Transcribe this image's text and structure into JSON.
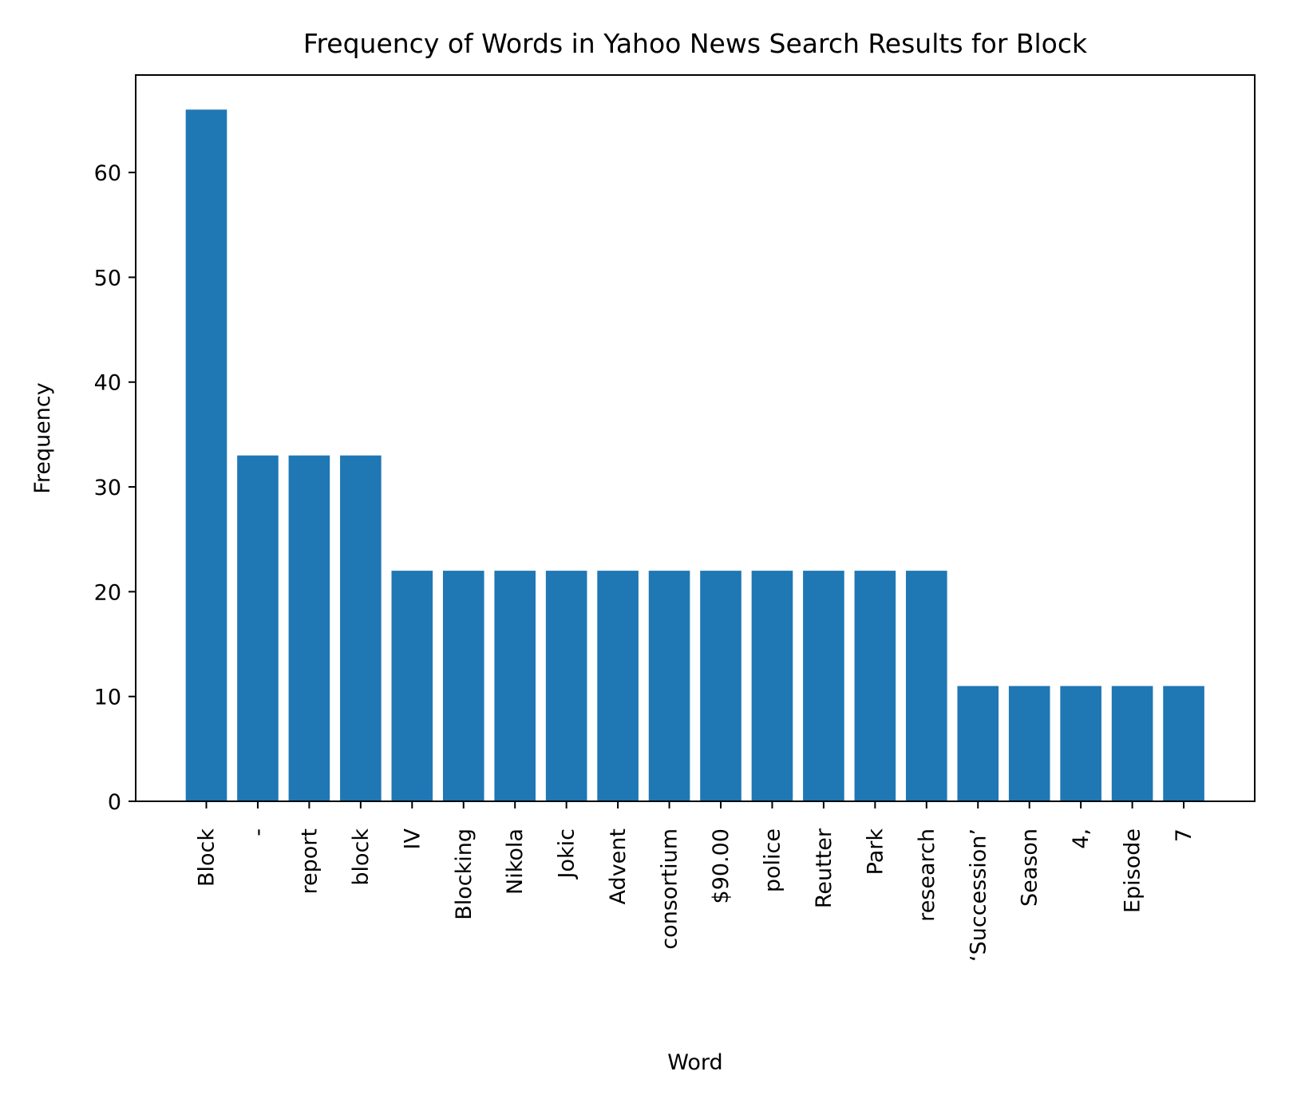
{
  "chart_data": {
    "type": "bar",
    "title": "Frequency of Words in Yahoo News Search Results for Block",
    "xlabel": "Word",
    "ylabel": "Frequency",
    "categories": [
      "Block",
      "-",
      "report",
      "block",
      "IV",
      "Blocking",
      "Nikola",
      "Jokic",
      "Advent",
      "consortium",
      "$90.00",
      "police",
      "Reutter",
      "Park",
      "research",
      "‘Succession’",
      "Season",
      "4,",
      "Episode",
      "7"
    ],
    "values": [
      66,
      33,
      33,
      33,
      22,
      22,
      22,
      22,
      22,
      22,
      22,
      22,
      22,
      22,
      22,
      11,
      11,
      11,
      11,
      11
    ],
    "ylim": [
      0,
      69.3
    ],
    "yticks": [
      0,
      10,
      20,
      30,
      40,
      50,
      60
    ],
    "grid": false,
    "colors": {
      "bar": "#1f77b4",
      "axes": "#000000"
    }
  }
}
